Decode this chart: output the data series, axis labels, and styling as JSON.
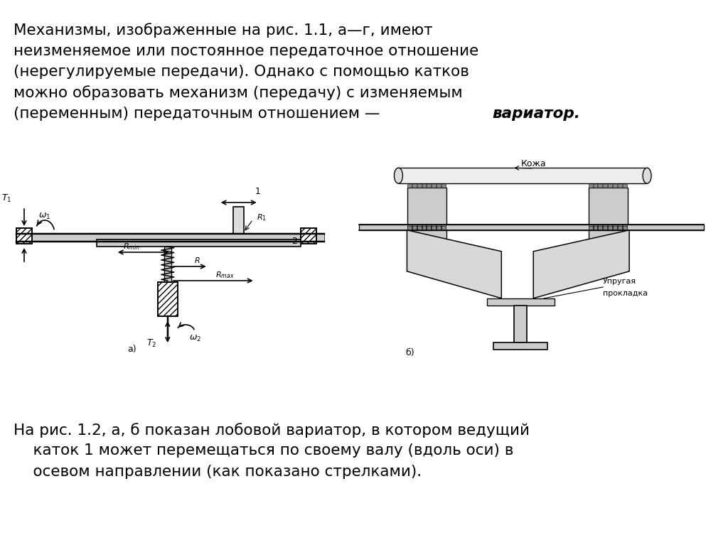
{
  "bg_color": "#ffffff",
  "top_text_line1": "Механизмы, изображенные на рис. 1.1, а—г, имеют",
  "top_text_line2": "неизменяемое или постоянное передаточное отношение",
  "top_text_line3": "(нерегулируемые передачи). Однако с помощью катков",
  "top_text_line4": "можно образовать механизм (передачу) с изменяемым",
  "top_text_line5_pre": "(переменным) передаточным отношением — ",
  "top_text_line5_italic": "вариатор.",
  "bottom_text_line1": "На рис. 1.2, а, б показан лобовой вариатор, в котором ведущий",
  "bottom_text_line2": "    каток 1 может перемещаться по своему валу (вдоль оси) в",
  "bottom_text_line3": "    осевом направлении (как показано стрелками).",
  "text_color": "#000000",
  "text_fontsize": 15.5
}
